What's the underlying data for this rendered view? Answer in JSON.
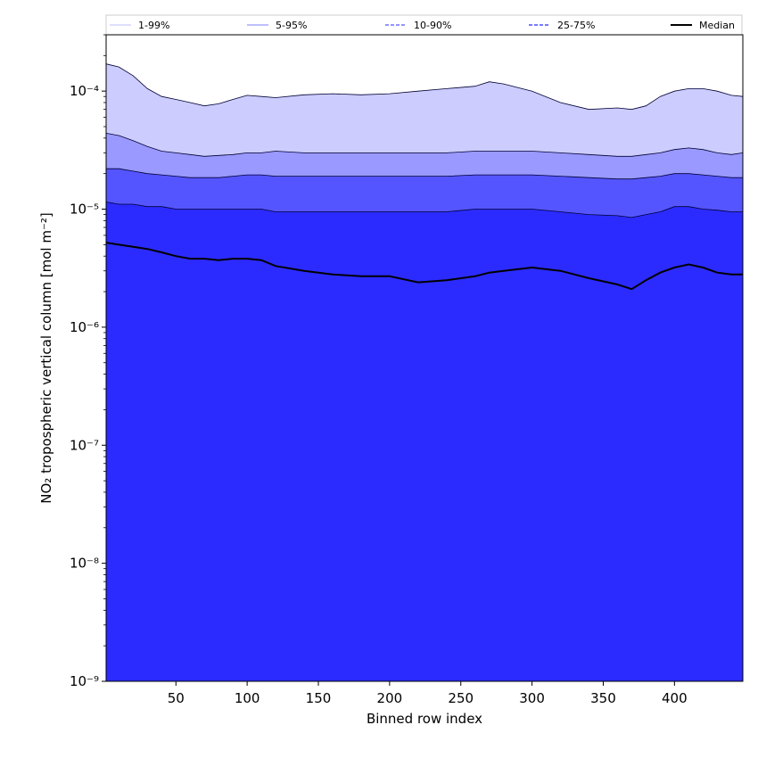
{
  "chart_data": {
    "type": "area",
    "xlabel": "Binned row index",
    "ylabel": "NO₂ tropospheric vertical column [mol m⁻²]",
    "xlim": [
      1,
      448
    ],
    "ylim": [
      1e-09,
      0.0003
    ],
    "yscale": "log",
    "xticks": [
      50,
      100,
      150,
      200,
      250,
      300,
      350,
      400
    ],
    "yticks": [
      {
        "value": 1e-09,
        "label": "10⁻⁹"
      },
      {
        "value": 1e-08,
        "label": "10⁻⁸"
      },
      {
        "value": 1e-07,
        "label": "10⁻⁷"
      },
      {
        "value": 1e-06,
        "label": "10⁻⁶"
      },
      {
        "value": 1e-05,
        "label": "10⁻⁵"
      },
      {
        "value": 0.0001,
        "label": "10⁻⁴"
      }
    ],
    "grid": false,
    "legend_position": "top",
    "x": [
      1,
      10,
      20,
      30,
      40,
      50,
      60,
      70,
      80,
      90,
      100,
      110,
      120,
      140,
      160,
      180,
      200,
      220,
      240,
      260,
      270,
      280,
      300,
      320,
      340,
      360,
      370,
      380,
      390,
      400,
      410,
      420,
      430,
      440,
      448
    ],
    "bands": [
      {
        "name": "1-99%",
        "color": "#ccccff",
        "line_style": "solid",
        "upper": [
          0.00017,
          0.00016,
          0.000135,
          0.000105,
          9e-05,
          8.5e-05,
          8e-05,
          7.5e-05,
          7.8e-05,
          8.5e-05,
          9.2e-05,
          9e-05,
          8.8e-05,
          9.3e-05,
          9.5e-05,
          9.3e-05,
          9.5e-05,
          0.0001,
          0.000105,
          0.00011,
          0.00012,
          0.000115,
          0.0001,
          8e-05,
          7e-05,
          7.2e-05,
          7e-05,
          7.5e-05,
          9e-05,
          0.0001,
          0.000105,
          0.000105,
          0.0001,
          9.2e-05,
          9e-05
        ],
        "lower": [
          1.1e-06,
          1e-06,
          9e-07,
          7e-07,
          5e-07,
          3e-07,
          1.5e-07,
          5e-08,
          2e-08,
          6e-09,
          3e-09,
          1.5e-09,
          1e-09,
          1e-09,
          1e-09,
          1e-09,
          1e-09,
          1e-09,
          1e-09,
          1e-09,
          1e-09,
          1e-09,
          1e-09,
          1e-09,
          1e-09,
          1e-09,
          1e-09,
          1e-09,
          1e-09,
          1e-09,
          1e-09,
          1e-09,
          1e-09,
          1e-09,
          1e-09
        ]
      },
      {
        "name": "5-95%",
        "color": "#9999ff",
        "line_style": "solid",
        "upper": [
          4.4e-05,
          4.2e-05,
          3.8e-05,
          3.4e-05,
          3.1e-05,
          3e-05,
          2.9e-05,
          2.8e-05,
          2.85e-05,
          2.9e-05,
          3e-05,
          3e-05,
          3.1e-05,
          3e-05,
          3e-05,
          3e-05,
          3e-05,
          3e-05,
          3e-05,
          3.1e-05,
          3.1e-05,
          3.1e-05,
          3.1e-05,
          3e-05,
          2.9e-05,
          2.8e-05,
          2.8e-05,
          2.9e-05,
          3e-05,
          3.2e-05,
          3.3e-05,
          3.2e-05,
          3e-05,
          2.9e-05,
          3e-05
        ],
        "lower": [
          8e-07,
          6e-07,
          4e-07,
          2e-07,
          5e-08,
          1e-08,
          2e-09,
          1e-09,
          1e-09,
          1e-09,
          1e-09,
          1e-09,
          1e-09,
          1e-09,
          1e-09,
          1e-09,
          1e-09,
          1e-09,
          1e-09,
          1e-09,
          1e-09,
          1e-09,
          1e-09,
          1e-09,
          1e-09,
          1e-09,
          1e-09,
          1e-09,
          1e-09,
          1e-09,
          1e-09,
          1e-09,
          1e-09,
          1e-09,
          1e-09
        ]
      },
      {
        "name": "10-90%",
        "color": "#5555ff",
        "line_style": "dashed",
        "upper": [
          2.2e-05,
          2.2e-05,
          2.1e-05,
          2e-05,
          1.95e-05,
          1.9e-05,
          1.85e-05,
          1.85e-05,
          1.85e-05,
          1.9e-05,
          1.95e-05,
          1.95e-05,
          1.9e-05,
          1.9e-05,
          1.9e-05,
          1.9e-05,
          1.9e-05,
          1.9e-05,
          1.9e-05,
          1.95e-05,
          1.95e-05,
          1.95e-05,
          1.95e-05,
          1.9e-05,
          1.85e-05,
          1.8e-05,
          1.8e-05,
          1.85e-05,
          1.9e-05,
          2e-05,
          2e-05,
          1.95e-05,
          1.9e-05,
          1.85e-05,
          1.85e-05
        ],
        "lower": [
          1e-09,
          1e-09,
          1e-09,
          1e-09,
          1e-09,
          1e-09,
          1e-09,
          1e-09,
          1e-09,
          1e-09,
          1e-09,
          1e-09,
          1e-09,
          1e-09,
          1e-09,
          1e-09,
          1e-09,
          1e-09,
          1e-09,
          1e-09,
          1e-09,
          1e-09,
          1e-09,
          1e-09,
          1e-09,
          1e-09,
          1e-09,
          1e-09,
          1e-09,
          1e-09,
          1e-09,
          1e-09,
          1e-09,
          1e-09,
          1e-09
        ]
      },
      {
        "name": "25-75%",
        "color": "#2b2bff",
        "line_style": "dashed",
        "upper": [
          1.15e-05,
          1.1e-05,
          1.1e-05,
          1.05e-05,
          1.05e-05,
          1e-05,
          1e-05,
          1e-05,
          1e-05,
          1e-05,
          1e-05,
          1e-05,
          9.5e-06,
          9.5e-06,
          9.5e-06,
          9.5e-06,
          9.5e-06,
          9.5e-06,
          9.5e-06,
          1e-05,
          1e-05,
          1e-05,
          1e-05,
          9.5e-06,
          9e-06,
          8.8e-06,
          8.5e-06,
          9e-06,
          9.5e-06,
          1.05e-05,
          1.05e-05,
          1e-05,
          9.8e-06,
          9.5e-06,
          9.5e-06
        ],
        "lower": [
          1e-09,
          1e-09,
          1e-09,
          1e-09,
          1e-09,
          1e-09,
          1e-09,
          1e-09,
          1e-09,
          1e-09,
          1e-09,
          1e-09,
          1e-09,
          1e-09,
          1e-09,
          1e-09,
          1e-09,
          1e-09,
          1e-09,
          1e-09,
          1e-09,
          1e-09,
          1e-09,
          1e-09,
          1e-09,
          1e-09,
          1e-09,
          1e-09,
          1e-09,
          1e-09,
          1e-09,
          1e-09,
          1e-09,
          1e-09,
          1e-09
        ]
      }
    ],
    "median": {
      "name": "Median",
      "color": "#000000",
      "values": [
        5.2e-06,
        5e-06,
        4.8e-06,
        4.6e-06,
        4.3e-06,
        4e-06,
        3.8e-06,
        3.8e-06,
        3.7e-06,
        3.8e-06,
        3.8e-06,
        3.7e-06,
        3.3e-06,
        3e-06,
        2.8e-06,
        2.7e-06,
        2.7e-06,
        2.4e-06,
        2.5e-06,
        2.7e-06,
        2.9e-06,
        3e-06,
        3.2e-06,
        3e-06,
        2.6e-06,
        2.3e-06,
        2.1e-06,
        2.5e-06,
        2.9e-06,
        3.2e-06,
        3.4e-06,
        3.2e-06,
        2.9e-06,
        2.8e-06,
        2.8e-06
      ]
    }
  }
}
